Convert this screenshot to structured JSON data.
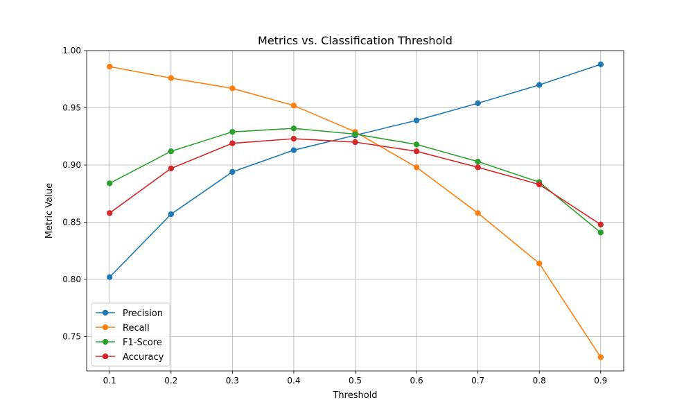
{
  "chart_data": {
    "type": "line",
    "title": "Metrics vs. Classification Threshold",
    "xlabel": "Threshold",
    "ylabel": "Metric Value",
    "x": [
      0.1,
      0.2,
      0.3,
      0.4,
      0.5,
      0.6,
      0.7,
      0.8,
      0.9
    ],
    "x_ticks": [
      "0.1",
      "0.2",
      "0.3",
      "0.4",
      "0.5",
      "0.6",
      "0.7",
      "0.8",
      "0.9"
    ],
    "ylim": [
      0.72,
      1.0
    ],
    "y_ticks": [
      "0.75",
      "0.80",
      "0.85",
      "0.90",
      "0.95",
      "1.00"
    ],
    "grid": true,
    "legend_position": "lower-left",
    "series": [
      {
        "name": "Precision",
        "color": "#1f77b4",
        "values": [
          0.802,
          0.857,
          0.894,
          0.913,
          0.926,
          0.939,
          0.954,
          0.97,
          0.988
        ]
      },
      {
        "name": "Recall",
        "color": "#ff7f0e",
        "values": [
          0.986,
          0.976,
          0.967,
          0.952,
          0.929,
          0.898,
          0.858,
          0.814,
          0.732
        ]
      },
      {
        "name": "F1-Score",
        "color": "#2ca02c",
        "values": [
          0.884,
          0.912,
          0.929,
          0.932,
          0.927,
          0.918,
          0.903,
          0.885,
          0.841
        ]
      },
      {
        "name": "Accuracy",
        "color": "#d62728",
        "values": [
          0.858,
          0.897,
          0.919,
          0.923,
          0.92,
          0.912,
          0.898,
          0.883,
          0.848
        ]
      }
    ]
  }
}
